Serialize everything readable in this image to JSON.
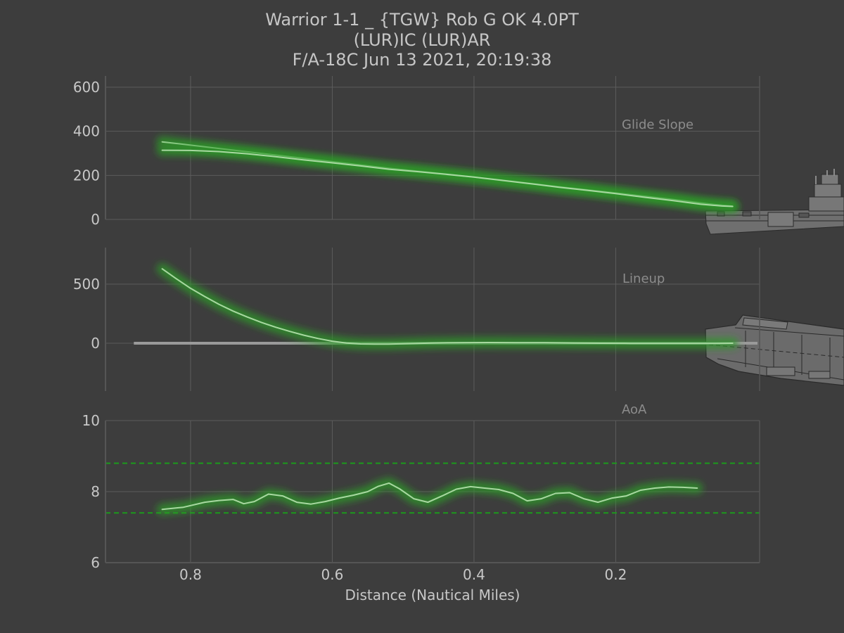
{
  "title_lines": [
    "Warrior 1-1 _ {TGW} Rob G OK 4.0PT",
    "(LUR)IC (LUR)AR",
    "F/A-18C Jun 13 2021, 20:19:38"
  ],
  "colors": {
    "background": "#3d3d3d",
    "line": "#a8d8a0",
    "glow": "#2f9a2a",
    "grid": "#5c5c5c",
    "axis": "#555555",
    "aoa_limit": "#1c9a1c",
    "centerline": "#9a9a9a",
    "ship": "#6f6f6f"
  },
  "icons": [
    "carrier-side-view-icon",
    "carrier-top-view-icon"
  ],
  "chart_data": [
    {
      "type": "line",
      "label": "Glide Slope",
      "ylim": [
        0,
        650
      ],
      "yticks": [
        0,
        200,
        400,
        600
      ],
      "grid": true,
      "xlim": [
        0.92,
        -0.003
      ],
      "xticks": [
        0.8,
        0.6,
        0.4,
        0.2
      ],
      "series": [
        {
          "role": "reference",
          "x": [
            0.84,
            0.76,
            0.68,
            0.6,
            0.52,
            0.44,
            0.36,
            0.28,
            0.2,
            0.12,
            0.07,
            0.035
          ],
          "y": [
            352,
            322,
            292,
            262,
            232,
            206,
            178,
            148,
            120,
            91,
            71,
            60
          ]
        },
        {
          "role": "actual",
          "x": [
            0.84,
            0.8,
            0.76,
            0.72,
            0.68,
            0.64,
            0.6,
            0.56,
            0.52,
            0.48,
            0.44,
            0.4,
            0.36,
            0.32,
            0.28,
            0.24,
            0.2,
            0.16,
            0.12,
            0.08,
            0.05,
            0.035
          ],
          "y": [
            314,
            313,
            308,
            298,
            285,
            270,
            257,
            243,
            228,
            217,
            205,
            192,
            177,
            162,
            146,
            132,
            117,
            101,
            86,
            69,
            61,
            59
          ]
        }
      ]
    },
    {
      "type": "line",
      "label": "Lineup",
      "ylim": [
        -400,
        800
      ],
      "yticks": [
        0,
        500
      ],
      "grid": true,
      "xlim": [
        0.92,
        -0.003
      ],
      "xticks": [
        0.8,
        0.6,
        0.4,
        0.2
      ],
      "series": [
        {
          "role": "reference",
          "x": [
            0.88,
            0.0
          ],
          "y": [
            0,
            0
          ]
        },
        {
          "role": "actual",
          "x": [
            0.84,
            0.82,
            0.8,
            0.78,
            0.76,
            0.74,
            0.72,
            0.7,
            0.68,
            0.66,
            0.64,
            0.62,
            0.6,
            0.58,
            0.56,
            0.54,
            0.52,
            0.5,
            0.46,
            0.42,
            0.38,
            0.34,
            0.3,
            0.26,
            0.22,
            0.18,
            0.14,
            0.1,
            0.06,
            0.035
          ],
          "y": [
            630,
            545,
            465,
            395,
            330,
            272,
            222,
            176,
            136,
            100,
            68,
            40,
            17,
            2,
            -6,
            -8,
            -7,
            -4,
            2,
            5,
            6,
            5,
            4,
            2,
            0,
            -1,
            -2,
            -2,
            -1,
            0
          ]
        }
      ]
    },
    {
      "type": "line",
      "label": "AoA",
      "ylim": [
        6,
        10
      ],
      "yticks": [
        6,
        8,
        10
      ],
      "grid": true,
      "xlim": [
        0.92,
        -0.003
      ],
      "xticks": [
        0.8,
        0.6,
        0.4,
        0.2
      ],
      "xlabel": "Distance (Nautical Miles)",
      "limits": [
        7.4,
        8.8
      ],
      "series": [
        {
          "role": "actual",
          "x": [
            0.84,
            0.81,
            0.78,
            0.76,
            0.74,
            0.725,
            0.71,
            0.69,
            0.67,
            0.65,
            0.63,
            0.61,
            0.59,
            0.57,
            0.55,
            0.535,
            0.52,
            0.505,
            0.485,
            0.465,
            0.445,
            0.425,
            0.405,
            0.385,
            0.365,
            0.345,
            0.325,
            0.305,
            0.285,
            0.265,
            0.245,
            0.225,
            0.205,
            0.185,
            0.165,
            0.145,
            0.125,
            0.105,
            0.085
          ],
          "y": [
            7.5,
            7.56,
            7.7,
            7.75,
            7.78,
            7.66,
            7.72,
            7.93,
            7.88,
            7.7,
            7.65,
            7.72,
            7.82,
            7.9,
            8.0,
            8.15,
            8.24,
            8.08,
            7.8,
            7.7,
            7.88,
            8.07,
            8.14,
            8.1,
            8.06,
            7.95,
            7.74,
            7.8,
            7.95,
            7.97,
            7.8,
            7.7,
            7.82,
            7.88,
            8.04,
            8.1,
            8.13,
            8.12,
            8.1
          ]
        }
      ]
    }
  ]
}
